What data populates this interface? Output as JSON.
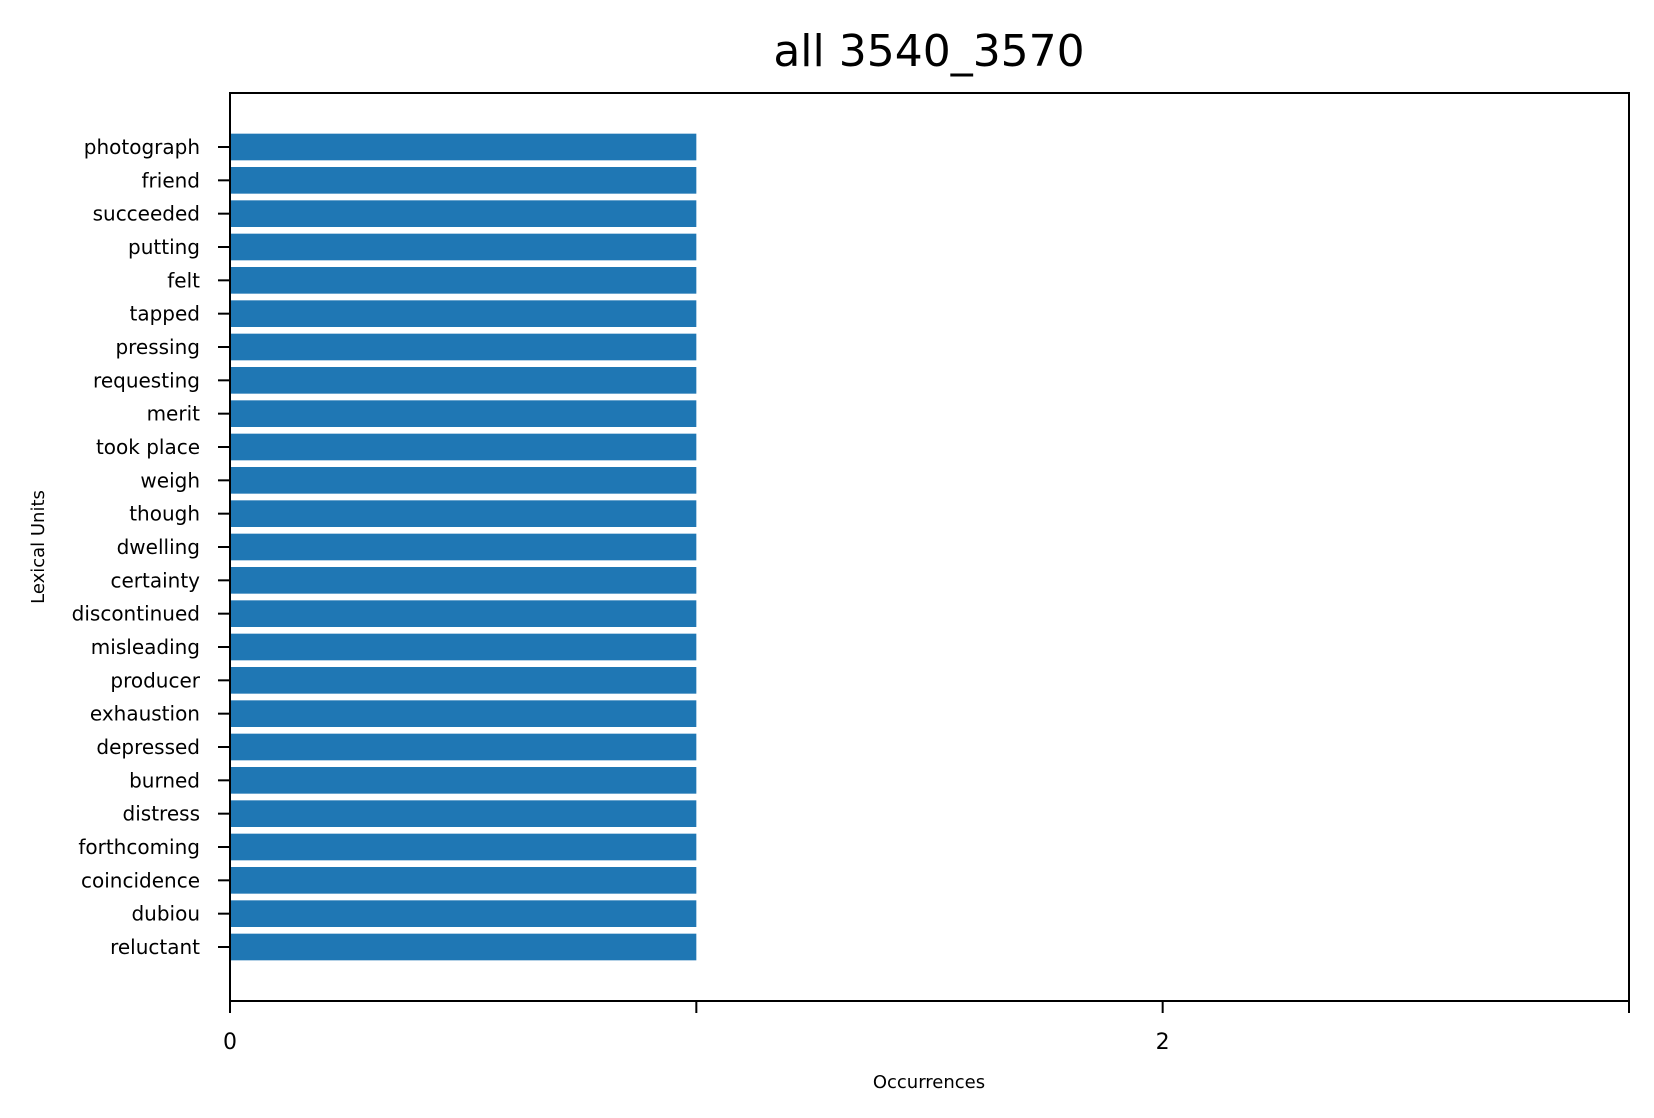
{
  "chart_data": {
    "type": "bar",
    "orientation": "horizontal",
    "title": "all 3540_3570",
    "xlabel": "Occurrences",
    "ylabel": "Lexical Units",
    "categories": [
      "photograph",
      "friend",
      "succeeded",
      "putting",
      "felt",
      "tapped",
      "pressing",
      "requesting",
      "merit",
      "took place",
      "weigh",
      "though",
      "dwelling",
      "certainty",
      "discontinued",
      "misleading",
      "producer",
      "exhaustion",
      "depressed",
      "burned",
      "distress",
      "forthcoming",
      "coincidence",
      "dubiou",
      "reluctant"
    ],
    "values": [
      1,
      1,
      1,
      1,
      1,
      1,
      1,
      1,
      1,
      1,
      1,
      1,
      1,
      1,
      1,
      1,
      1,
      1,
      1,
      1,
      1,
      1,
      1,
      1,
      1
    ],
    "xlim": [
      0,
      3
    ],
    "x_ticks": [
      0,
      1,
      2,
      3
    ],
    "x_tick_labels": [
      "0",
      "",
      "2",
      ""
    ],
    "grid": false,
    "bar_color": "#1f77b4"
  }
}
